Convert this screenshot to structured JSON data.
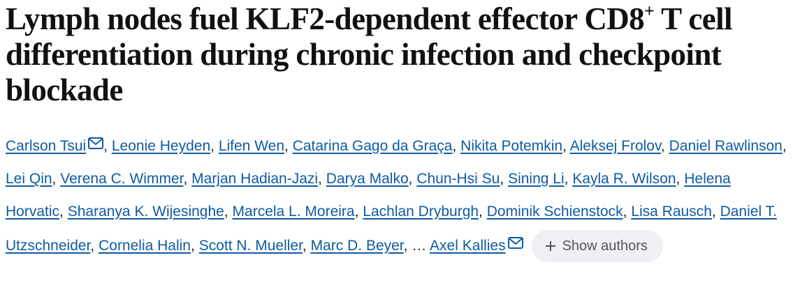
{
  "title": {
    "before_sup": "Lymph nodes fuel KLF2-dependent effector CD8",
    "sup": "+",
    "after_sup": " T cell differentiation during chronic infection and checkpoint blockade"
  },
  "authors": {
    "list": [
      {
        "name": "Carlson Tsui",
        "email": true
      },
      {
        "name": "Leonie Heyden"
      },
      {
        "name": "Lifen Wen"
      },
      {
        "name": "Catarina Gago da Graça"
      },
      {
        "name": "Nikita Potemkin"
      },
      {
        "name": "Aleksej Frolov"
      },
      {
        "name": "Daniel Rawlinson"
      },
      {
        "name": "Lei Qin"
      },
      {
        "name": "Verena C. Wimmer"
      },
      {
        "name": "Marjan Hadian-Jazi"
      },
      {
        "name": "Darya Malko"
      },
      {
        "name": "Chun-Hsi Su"
      },
      {
        "name": "Sining Li"
      },
      {
        "name": "Kayla R. Wilson"
      },
      {
        "name": "Helena Horvatic"
      },
      {
        "name": "Sharanya K. Wijesinghe"
      },
      {
        "name": "Marcela L. Moreira"
      },
      {
        "name": "Lachlan Dryburgh"
      },
      {
        "name": "Dominik Schienstock"
      },
      {
        "name": "Lisa Rausch"
      },
      {
        "name": "Daniel T. Utzschneider"
      },
      {
        "name": "Cornelia Halin"
      },
      {
        "name": "Scott N. Mueller"
      },
      {
        "name": "Marc D. Beyer"
      }
    ],
    "separator": ",",
    "ellipsis": "…",
    "last": {
      "name": "Axel Kallies",
      "email": true
    },
    "show_button": "Show authors"
  }
}
